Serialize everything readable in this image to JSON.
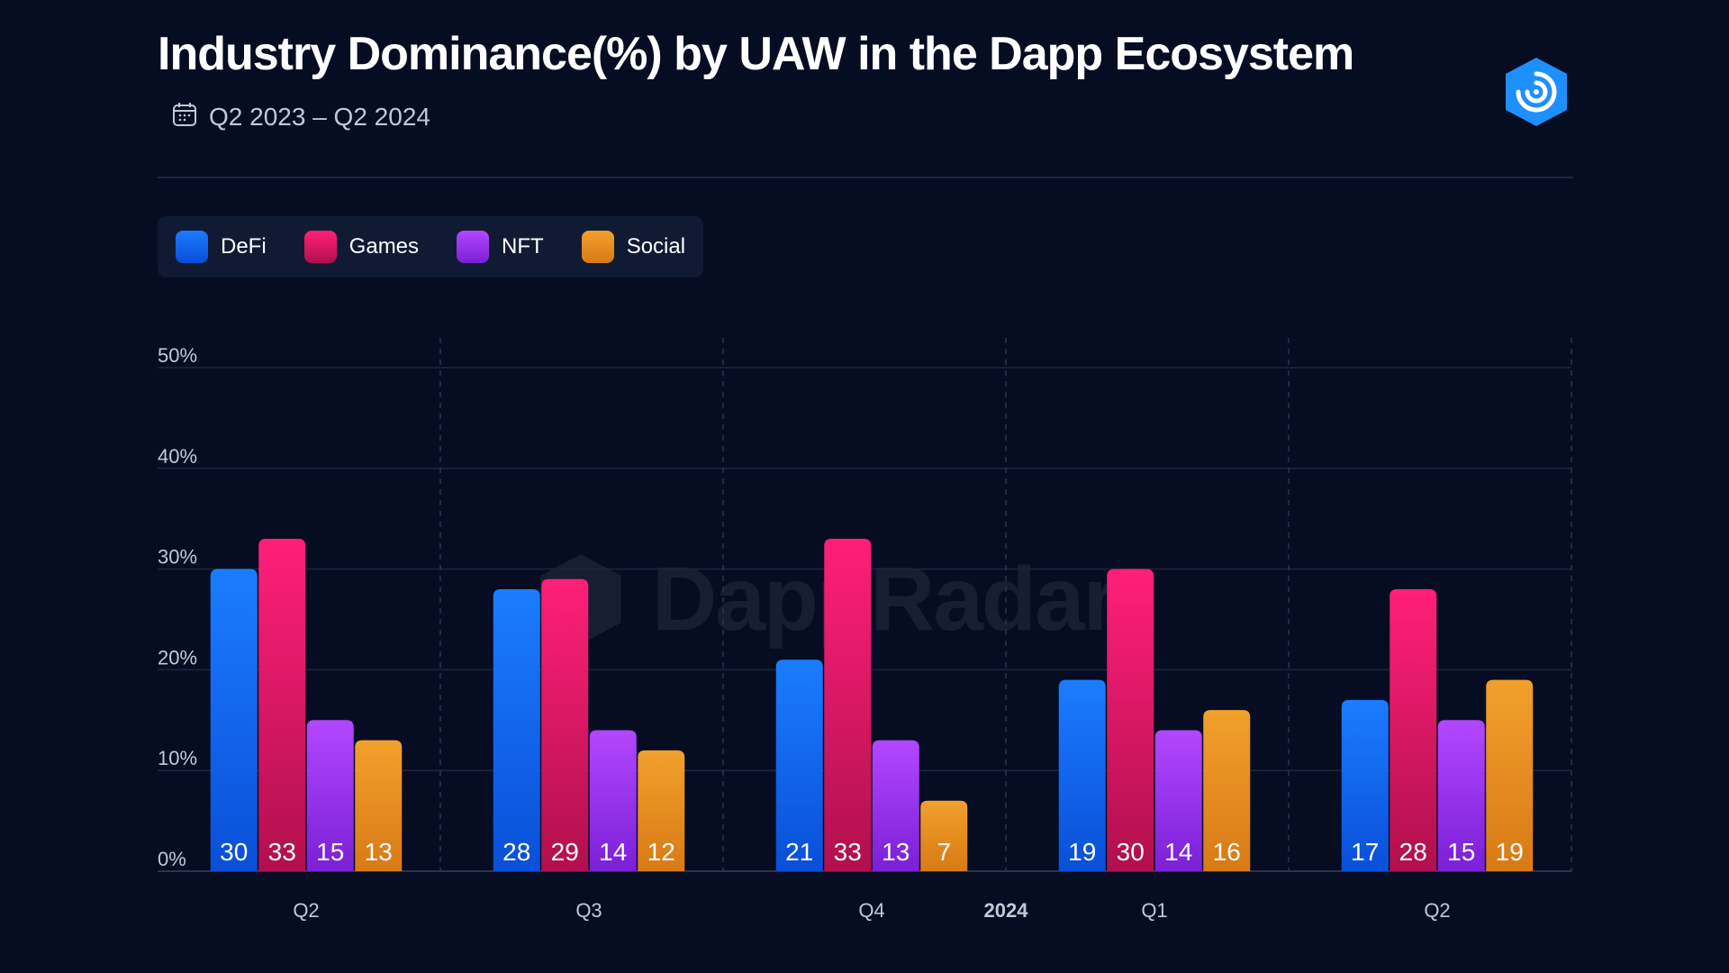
{
  "header": {
    "title": "Industry Dominance(%) by UAW in the Dapp Ecosystem",
    "subtitle": "Q2 2023 – Q2 2024",
    "calendar_icon": "calendar-icon",
    "logo_icon": "dappradar-logo-icon"
  },
  "watermark": {
    "text": "DappRadar"
  },
  "colors": {
    "background": "#060d22",
    "DeFi": [
      "#1b7cff",
      "#0a4fd8"
    ],
    "Games": [
      "#ff1f78",
      "#b0104e"
    ],
    "NFT": [
      "#b347ff",
      "#7a20d6"
    ],
    "Social": [
      "#f2a02c",
      "#d87a16"
    ],
    "logo": "#1e8fff"
  },
  "chart_data": {
    "type": "bar",
    "categories": [
      "Q2",
      "Q3",
      "Q4",
      "Q1",
      "Q2"
    ],
    "year_marker": "2024",
    "series": [
      {
        "name": "DeFi",
        "values": [
          30,
          28,
          21,
          19,
          17
        ]
      },
      {
        "name": "Games",
        "values": [
          33,
          29,
          33,
          30,
          28
        ]
      },
      {
        "name": "NFT",
        "values": [
          15,
          14,
          13,
          14,
          15
        ]
      },
      {
        "name": "Social",
        "values": [
          13,
          12,
          7,
          16,
          19
        ]
      }
    ],
    "ylim": [
      0,
      50
    ],
    "yticks": [
      "0%",
      "10%",
      "20%",
      "30%",
      "40%",
      "50%"
    ],
    "legend_position": "top-left",
    "grid": true,
    "data_labels": true
  }
}
